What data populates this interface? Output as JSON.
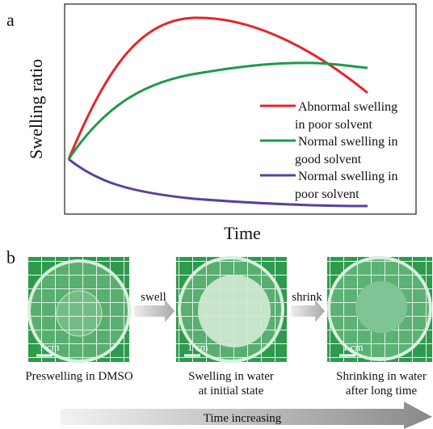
{
  "panel_a": {
    "label": "a",
    "y_axis_label": "Swelling ratio",
    "x_axis_label": "Time",
    "legend": [
      {
        "lines": [
          "Abnormal swelling",
          "in poor solvent"
        ]
      },
      {
        "lines": [
          "Normal swelling in",
          "good solvent"
        ]
      },
      {
        "lines": [
          "Normal swelling in",
          "poor solvent"
        ]
      }
    ]
  },
  "panel_b": {
    "label": "b",
    "photos": [
      {
        "scale_bar": "1 cm",
        "caption": [
          "Preswelling  in DMSO"
        ]
      },
      {
        "scale_bar": "1 cm",
        "caption": [
          "Swelling  in water",
          "at initial state"
        ]
      },
      {
        "scale_bar": "1 cm",
        "caption": [
          "Shrinking in water",
          "after long time"
        ]
      }
    ],
    "arrows": [
      "swell",
      "shrink"
    ],
    "time_arrow": "Time increasing"
  }
}
